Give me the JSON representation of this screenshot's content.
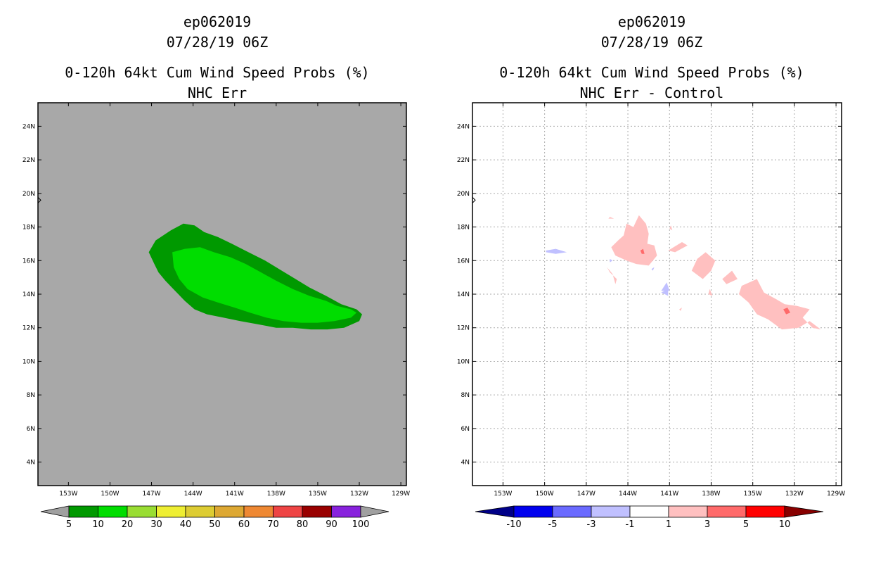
{
  "left_panel": {
    "storm_id": "ep062019",
    "datetime": "07/28/19 06Z",
    "product": "0-120h 64kt Cum Wind Speed Probs (%)",
    "subtitle": "NHC Err"
  },
  "right_panel": {
    "storm_id": "ep062019",
    "datetime": "07/28/19 06Z",
    "product": "0-120h 64kt Cum Wind Speed Probs (%)",
    "subtitle": "NHC Err - Control"
  },
  "colors": {
    "land_gray": "#a8a8a8",
    "p5": "#009900",
    "p10": "#00dd00",
    "pos1": "#ffc0c0",
    "pos3": "#ff6a6a",
    "neg1": "#c0c0ff"
  },
  "chart_data": [
    {
      "type": "heatmap",
      "title": "0-120h 64kt Cum Wind Speed Probs (%)",
      "subtitle": "NHC Err",
      "x_ticks": [
        "153W",
        "150W",
        "147W",
        "144W",
        "141W",
        "138W",
        "135W",
        "132W",
        "129W"
      ],
      "y_ticks": [
        "4N",
        "6N",
        "8N",
        "10N",
        "12N",
        "14N",
        "16N",
        "18N",
        "20N",
        "22N",
        "24N"
      ],
      "xlim": [
        -155.2,
        -128.6
      ],
      "ylim": [
        2.6,
        25.4
      ],
      "grid": false,
      "legend": {
        "labels": [
          "5",
          "10",
          "20",
          "30",
          "40",
          "50",
          "60",
          "70",
          "80",
          "90",
          "100"
        ],
        "colors": [
          "#a0a0a0",
          "#009900",
          "#00dd00",
          "#99dd33",
          "#eeee33",
          "#ddcc33",
          "#dda833",
          "#ee8833",
          "#ee4444",
          "#990000",
          "#8822dd",
          "#a0a0a0"
        ]
      },
      "contours": [
        {
          "level": "5-10",
          "color": "#009900",
          "points": [
            [
              -147.2,
              16.5
            ],
            [
              -146.7,
              17.2
            ],
            [
              -145.6,
              17.8
            ],
            [
              -144.7,
              18.2
            ],
            [
              -143.9,
              18.1
            ],
            [
              -143.2,
              17.7
            ],
            [
              -142.2,
              17.4
            ],
            [
              -141.2,
              17.0
            ],
            [
              -140.0,
              16.5
            ],
            [
              -138.8,
              16.0
            ],
            [
              -137.8,
              15.5
            ],
            [
              -136.8,
              15.0
            ],
            [
              -135.6,
              14.4
            ],
            [
              -134.4,
              13.9
            ],
            [
              -133.3,
              13.4
            ],
            [
              -132.2,
              13.1
            ],
            [
              -131.8,
              12.8
            ],
            [
              -132.0,
              12.4
            ],
            [
              -133.1,
              12.0
            ],
            [
              -134.3,
              11.9
            ],
            [
              -135.5,
              11.9
            ],
            [
              -136.8,
              12.0
            ],
            [
              -138.0,
              12.0
            ],
            [
              -139.3,
              12.2
            ],
            [
              -140.6,
              12.4
            ],
            [
              -141.8,
              12.6
            ],
            [
              -143.0,
              12.8
            ],
            [
              -143.9,
              13.1
            ],
            [
              -144.6,
              13.6
            ],
            [
              -145.3,
              14.2
            ],
            [
              -146.0,
              14.8
            ],
            [
              -146.5,
              15.3
            ],
            [
              -146.8,
              15.8
            ],
            [
              -147.2,
              16.5
            ]
          ]
        },
        {
          "level": "10-20",
          "color": "#00dd00",
          "points": [
            [
              -145.5,
              16.5
            ],
            [
              -144.6,
              16.7
            ],
            [
              -143.5,
              16.8
            ],
            [
              -142.5,
              16.5
            ],
            [
              -141.3,
              16.2
            ],
            [
              -140.2,
              15.8
            ],
            [
              -139.1,
              15.3
            ],
            [
              -138.0,
              14.8
            ],
            [
              -136.8,
              14.3
            ],
            [
              -135.6,
              13.9
            ],
            [
              -134.4,
              13.6
            ],
            [
              -133.6,
              13.3
            ],
            [
              -132.6,
              13.1
            ],
            [
              -132.2,
              12.9
            ],
            [
              -132.6,
              12.6
            ],
            [
              -133.8,
              12.4
            ],
            [
              -135.0,
              12.3
            ],
            [
              -136.2,
              12.3
            ],
            [
              -137.5,
              12.4
            ],
            [
              -138.7,
              12.6
            ],
            [
              -139.9,
              12.9
            ],
            [
              -141.0,
              13.2
            ],
            [
              -142.2,
              13.5
            ],
            [
              -143.3,
              13.8
            ],
            [
              -144.4,
              14.3
            ],
            [
              -145.0,
              14.9
            ],
            [
              -145.4,
              15.6
            ],
            [
              -145.5,
              16.5
            ]
          ]
        }
      ]
    },
    {
      "type": "heatmap",
      "title": "0-120h 64kt Cum Wind Speed Probs (%)",
      "subtitle": "NHC Err - Control",
      "x_ticks": [
        "153W",
        "150W",
        "147W",
        "144W",
        "141W",
        "138W",
        "135W",
        "132W",
        "129W"
      ],
      "y_ticks": [
        "4N",
        "6N",
        "8N",
        "10N",
        "12N",
        "14N",
        "16N",
        "18N",
        "20N",
        "22N",
        "24N"
      ],
      "xlim": [
        -155.2,
        -128.6
      ],
      "ylim": [
        2.6,
        25.4
      ],
      "grid": true,
      "legend": {
        "labels": [
          "-10",
          "-5",
          "-3",
          "-1",
          "1",
          "3",
          "5",
          "10"
        ],
        "colors": [
          "#000088",
          "#0000ee",
          "#6a6aff",
          "#c0c0ff",
          "#ffffff",
          "#ffc0c0",
          "#ff6a6a",
          "#ff0000",
          "#880000"
        ]
      },
      "contours": [
        {
          "level": "1-3",
          "color": "#ffc0c0",
          "points": [
            [
              -144.3,
              17.5
            ],
            [
              -144.1,
              18.2
            ],
            [
              -143.6,
              18.0
            ],
            [
              -143.2,
              18.7
            ],
            [
              -142.7,
              18.2
            ],
            [
              -142.5,
              17.6
            ],
            [
              -142.6,
              17.0
            ],
            [
              -142.1,
              16.9
            ],
            [
              -141.9,
              16.3
            ],
            [
              -142.5,
              15.7
            ],
            [
              -143.4,
              15.8
            ],
            [
              -144.1,
              16.0
            ],
            [
              -144.9,
              16.3
            ],
            [
              -145.2,
              16.8
            ],
            [
              -144.7,
              17.2
            ],
            [
              -144.3,
              17.5
            ]
          ]
        },
        {
          "level": "1-3",
          "color": "#ffc0c0",
          "points": [
            [
              -141.1,
              16.6
            ],
            [
              -140.1,
              17.1
            ],
            [
              -139.7,
              16.9
            ],
            [
              -140.6,
              16.5
            ],
            [
              -141.1,
              16.6
            ]
          ]
        },
        {
          "level": "1-3",
          "color": "#ffc0c0",
          "points": [
            [
              -139.0,
              16.1
            ],
            [
              -138.4,
              16.5
            ],
            [
              -137.7,
              16.0
            ],
            [
              -138.0,
              15.4
            ],
            [
              -138.6,
              14.9
            ],
            [
              -139.4,
              15.4
            ],
            [
              -139.0,
              16.1
            ]
          ]
        },
        {
          "level": "1-3",
          "color": "#ffc0c0",
          "points": [
            [
              -137.2,
              14.9
            ],
            [
              -136.5,
              15.4
            ],
            [
              -136.1,
              14.9
            ],
            [
              -136.9,
              14.6
            ],
            [
              -137.2,
              14.9
            ]
          ]
        },
        {
          "level": "1-3",
          "color": "#ffc0c0",
          "points": [
            [
              -135.8,
              14.5
            ],
            [
              -134.7,
              14.9
            ],
            [
              -134.2,
              14.1
            ],
            [
              -133.3,
              13.7
            ],
            [
              -132.7,
              13.4
            ],
            [
              -131.8,
              13.3
            ],
            [
              -130.9,
              13.1
            ],
            [
              -131.4,
              12.6
            ],
            [
              -130.7,
              12.0
            ],
            [
              -130.1,
              11.9
            ],
            [
              -130.9,
              12.4
            ],
            [
              -131.7,
              12.0
            ],
            [
              -132.9,
              11.9
            ],
            [
              -133.9,
              12.5
            ],
            [
              -134.7,
              12.8
            ],
            [
              -135.3,
              13.5
            ],
            [
              -136.0,
              14.0
            ],
            [
              -135.8,
              14.5
            ]
          ]
        },
        {
          "level": "1-3",
          "color": "#ffc0c0",
          "points": [
            [
              -145.5,
              15.6
            ],
            [
              -145.1,
              15.2
            ],
            [
              -144.9,
              14.6
            ],
            [
              -144.8,
              14.9
            ],
            [
              -145.3,
              15.3
            ],
            [
              -145.5,
              15.6
            ]
          ]
        },
        {
          "level": "1-3",
          "color": "#ffc0c0",
          "points": [
            [
              -145.3,
              18.6
            ],
            [
              -145.0,
              18.5
            ],
            [
              -145.4,
              18.5
            ],
            [
              -145.3,
              18.6
            ]
          ]
        },
        {
          "level": "1-3",
          "color": "#ffc0c0",
          "points": [
            [
              -140.9,
              18.1
            ],
            [
              -140.8,
              17.8
            ],
            [
              -141.0,
              17.9
            ],
            [
              -140.9,
              18.1
            ]
          ]
        },
        {
          "level": "1-3",
          "color": "#ffc0c0",
          "points": [
            [
              -138.1,
              14.3
            ],
            [
              -137.9,
              13.9
            ],
            [
              -138.2,
              14.0
            ],
            [
              -138.1,
              14.3
            ]
          ]
        },
        {
          "level": "1-3",
          "color": "#ffc0c0",
          "points": [
            [
              -140.1,
              13.2
            ],
            [
              -140.2,
              13.0
            ],
            [
              -140.3,
              13.1
            ],
            [
              -140.1,
              13.2
            ]
          ]
        },
        {
          "level": "3-5",
          "color": "#ff6a6a",
          "points": [
            [
              -143.1,
              16.6
            ],
            [
              -142.9,
              16.7
            ],
            [
              -142.8,
              16.4
            ],
            [
              -143.0,
              16.4
            ],
            [
              -143.1,
              16.6
            ]
          ]
        },
        {
          "level": "3-5",
          "color": "#ff6a6a",
          "points": [
            [
              -132.8,
              13.1
            ],
            [
              -132.5,
              13.2
            ],
            [
              -132.3,
              12.9
            ],
            [
              -132.6,
              12.8
            ],
            [
              -132.8,
              13.1
            ]
          ]
        },
        {
          "level": "-3--1",
          "color": "#c0c0ff",
          "points": [
            [
              -149.9,
              16.6
            ],
            [
              -149.2,
              16.7
            ],
            [
              -148.4,
              16.5
            ],
            [
              -149.2,
              16.4
            ],
            [
              -149.9,
              16.5
            ],
            [
              -149.9,
              16.6
            ]
          ]
        },
        {
          "level": "-3--1",
          "color": "#c0c0ff",
          "points": [
            [
              -141.6,
              14.1
            ],
            [
              -141.1,
              13.9
            ],
            [
              -141.1,
              14.3
            ],
            [
              -141.6,
              14.1
            ]
          ]
        },
        {
          "level": "-3--1",
          "color": "#c0c0ff",
          "points": [
            [
              -141.2,
              14.7
            ],
            [
              -141.0,
              14.2
            ],
            [
              -141.6,
              14.2
            ],
            [
              -141.2,
              14.7
            ]
          ]
        },
        {
          "level": "-3--1",
          "color": "#c0c0ff",
          "points": [
            [
              -145.3,
              16.1
            ],
            [
              -145.1,
              16.0
            ],
            [
              -145.3,
              15.9
            ],
            [
              -145.3,
              16.1
            ]
          ]
        },
        {
          "level": "-3--1",
          "color": "#c0c0ff",
          "points": [
            [
              -142.3,
              15.5
            ],
            [
              -142.1,
              15.6
            ],
            [
              -142.2,
              15.4
            ],
            [
              -142.3,
              15.5
            ]
          ]
        }
      ]
    }
  ]
}
